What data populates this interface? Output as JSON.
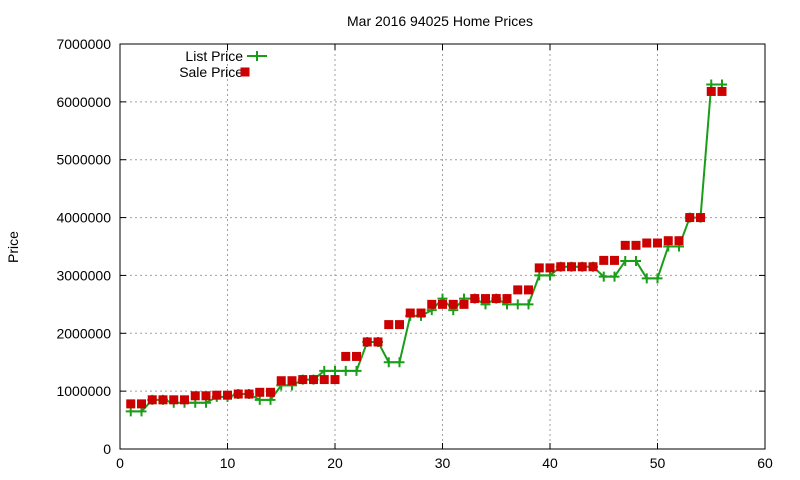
{
  "chart_data": {
    "type": "line",
    "title": "Mar 2016 94025 Home Prices",
    "xlabel": "",
    "ylabel": "Price",
    "xlim": [
      0,
      60
    ],
    "ylim": [
      0,
      7000000
    ],
    "x_ticks": [
      0,
      10,
      20,
      30,
      40,
      50,
      60
    ],
    "y_ticks": [
      0,
      1000000,
      2000000,
      3000000,
      4000000,
      5000000,
      6000000,
      7000000
    ],
    "grid": true,
    "legend_position": "top-left",
    "series": [
      {
        "name": "List Price",
        "style": "line-plus",
        "color": "#1a9e1a",
        "x": [
          1,
          2,
          3,
          4,
          5,
          6,
          7,
          8,
          9,
          10,
          11,
          12,
          13,
          14,
          15,
          16,
          17,
          18,
          19,
          20,
          21,
          22,
          23,
          24,
          25,
          26,
          27,
          28,
          29,
          30,
          31,
          32,
          33,
          34,
          35,
          36,
          37,
          38,
          39,
          40,
          41,
          42,
          43,
          44,
          45,
          46,
          47,
          48,
          49,
          50,
          51,
          52,
          53,
          54,
          55,
          56
        ],
        "y": [
          650000,
          650000,
          850000,
          850000,
          800000,
          800000,
          800000,
          800000,
          900000,
          900000,
          950000,
          950000,
          850000,
          850000,
          1100000,
          1100000,
          1200000,
          1200000,
          1350000,
          1350000,
          1350000,
          1350000,
          1850000,
          1850000,
          1500000,
          1500000,
          2300000,
          2300000,
          2400000,
          2600000,
          2400000,
          2600000,
          2600000,
          2500000,
          2600000,
          2500000,
          2500000,
          2500000,
          3000000,
          3000000,
          3150000,
          3150000,
          3150000,
          3150000,
          2980000,
          2980000,
          3250000,
          3250000,
          2950000,
          2950000,
          3500000,
          3500000,
          4000000,
          4000000,
          6300000,
          6300000
        ]
      },
      {
        "name": "Sale Price",
        "style": "square-markers",
        "color": "#cc0000",
        "x": [
          1,
          2,
          3,
          4,
          5,
          6,
          7,
          8,
          9,
          10,
          11,
          12,
          13,
          14,
          15,
          16,
          17,
          18,
          19,
          20,
          21,
          22,
          23,
          24,
          25,
          26,
          27,
          28,
          29,
          30,
          31,
          32,
          33,
          34,
          35,
          36,
          37,
          38,
          39,
          40,
          41,
          42,
          43,
          44,
          45,
          46,
          47,
          48,
          49,
          50,
          51,
          52,
          53,
          54,
          55,
          56
        ],
        "y": [
          780000,
          780000,
          850000,
          850000,
          850000,
          850000,
          920000,
          920000,
          930000,
          930000,
          950000,
          950000,
          980000,
          980000,
          1180000,
          1180000,
          1200000,
          1200000,
          1200000,
          1200000,
          1600000,
          1600000,
          1850000,
          1850000,
          2150000,
          2150000,
          2350000,
          2350000,
          2500000,
          2500000,
          2500000,
          2500000,
          2600000,
          2600000,
          2600000,
          2600000,
          2750000,
          2750000,
          3130000,
          3130000,
          3150000,
          3150000,
          3150000,
          3150000,
          3260000,
          3260000,
          3520000,
          3520000,
          3560000,
          3560000,
          3600000,
          3600000,
          4000000,
          4000000,
          6180000,
          6180000
        ]
      }
    ]
  }
}
